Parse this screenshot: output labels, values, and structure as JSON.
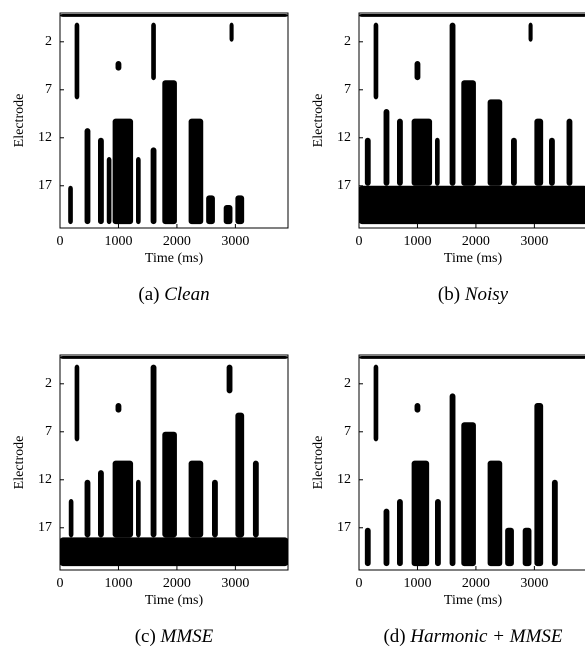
{
  "chart_data": [
    {
      "type": "electrodogram",
      "xlabel": "Time (ms)",
      "ylabel": "Electrode",
      "xlim": [
        0,
        3900
      ],
      "ylim": [
        -1,
        21.4
      ],
      "xticks": [
        0,
        1000,
        2000,
        3000
      ],
      "yticks": [
        2,
        7,
        12,
        17
      ],
      "color": "#000000",
      "caption": {
        "label": "(a)",
        "name": "Clean"
      },
      "bursts": [
        [
          0,
          3900,
          -0.9,
          -0.6
        ],
        [
          250,
          330,
          0,
          8
        ],
        [
          140,
          220,
          17,
          21
        ],
        [
          420,
          520,
          11,
          21
        ],
        [
          650,
          750,
          12,
          21
        ],
        [
          800,
          880,
          14,
          21
        ],
        [
          900,
          1250,
          10,
          21
        ],
        [
          950,
          1050,
          4,
          5
        ],
        [
          1300,
          1380,
          14,
          21
        ],
        [
          1560,
          1640,
          0,
          6
        ],
        [
          1550,
          1650,
          13,
          21
        ],
        [
          1750,
          2000,
          6,
          21
        ],
        [
          2200,
          2450,
          10,
          21
        ],
        [
          2500,
          2650,
          18,
          21
        ],
        [
          2800,
          2950,
          19,
          21
        ],
        [
          2900,
          2970,
          0,
          2
        ],
        [
          3000,
          3150,
          18,
          21
        ]
      ]
    },
    {
      "type": "electrodogram",
      "xlabel": "Time (ms)",
      "ylabel": "Electrode",
      "xlim": [
        0,
        3900
      ],
      "ylim": [
        -1,
        21.4
      ],
      "xticks": [
        0,
        1000,
        2000,
        3000
      ],
      "yticks": [
        2,
        7,
        12,
        17
      ],
      "color": "#000000",
      "caption": {
        "label": "(b)",
        "name": "Noisy"
      },
      "bursts": [
        [
          0,
          3900,
          -0.9,
          -0.6
        ],
        [
          0,
          3900,
          17,
          21
        ],
        [
          250,
          330,
          0,
          8
        ],
        [
          100,
          200,
          12,
          17
        ],
        [
          420,
          520,
          9,
          17
        ],
        [
          650,
          750,
          10,
          17
        ],
        [
          900,
          1250,
          10,
          17
        ],
        [
          950,
          1050,
          4,
          6
        ],
        [
          1300,
          1380,
          12,
          17
        ],
        [
          1550,
          1650,
          0,
          17
        ],
        [
          1750,
          2000,
          6,
          17
        ],
        [
          2200,
          2450,
          8,
          17
        ],
        [
          2600,
          2700,
          12,
          17
        ],
        [
          2900,
          2970,
          0,
          2
        ],
        [
          3000,
          3150,
          10,
          17
        ],
        [
          3250,
          3350,
          12,
          17
        ],
        [
          3550,
          3650,
          10,
          17
        ]
      ]
    },
    {
      "type": "electrodogram",
      "xlabel": "Time (ms)",
      "ylabel": "Electrode",
      "xlim": [
        0,
        3900
      ],
      "ylim": [
        -1,
        21.4
      ],
      "xticks": [
        0,
        1000,
        2000,
        3000
      ],
      "yticks": [
        2,
        7,
        12,
        17
      ],
      "color": "#000000",
      "caption": {
        "label": "(c)",
        "name": "MMSE"
      },
      "bursts": [
        [
          0,
          3900,
          -0.9,
          -0.6
        ],
        [
          0,
          3900,
          18,
          21
        ],
        [
          250,
          330,
          0,
          8
        ],
        [
          150,
          230,
          14,
          18
        ],
        [
          420,
          520,
          12,
          18
        ],
        [
          650,
          750,
          11,
          18
        ],
        [
          900,
          1250,
          10,
          18
        ],
        [
          950,
          1050,
          4,
          5
        ],
        [
          1300,
          1380,
          12,
          18
        ],
        [
          1550,
          1650,
          0,
          18
        ],
        [
          1750,
          2000,
          7,
          18
        ],
        [
          2200,
          2450,
          10,
          18
        ],
        [
          2600,
          2700,
          12,
          18
        ],
        [
          2850,
          2950,
          0,
          3
        ],
        [
          3000,
          3150,
          5,
          18
        ],
        [
          3300,
          3400,
          10,
          18
        ]
      ]
    },
    {
      "type": "electrodogram",
      "xlabel": "Time (ms)",
      "ylabel": "Electrode",
      "xlim": [
        0,
        3900
      ],
      "ylim": [
        -1,
        21.4
      ],
      "xticks": [
        0,
        1000,
        2000,
        3000
      ],
      "yticks": [
        2,
        7,
        12,
        17
      ],
      "color": "#000000",
      "caption": {
        "label": "(d)",
        "name": "Harmonic + MMSE"
      },
      "bursts": [
        [
          0,
          3900,
          -0.9,
          -0.6
        ],
        [
          250,
          330,
          0,
          8
        ],
        [
          100,
          200,
          17,
          21
        ],
        [
          420,
          520,
          15,
          21
        ],
        [
          650,
          750,
          14,
          21
        ],
        [
          900,
          1200,
          10,
          21
        ],
        [
          950,
          1050,
          4,
          5
        ],
        [
          1300,
          1400,
          14,
          21
        ],
        [
          1550,
          1650,
          3,
          21
        ],
        [
          1750,
          2000,
          6,
          21
        ],
        [
          2200,
          2450,
          10,
          21
        ],
        [
          2500,
          2650,
          17,
          21
        ],
        [
          2800,
          2950,
          17,
          21
        ],
        [
          3000,
          3150,
          4,
          21
        ],
        [
          3300,
          3400,
          12,
          21
        ]
      ]
    }
  ]
}
